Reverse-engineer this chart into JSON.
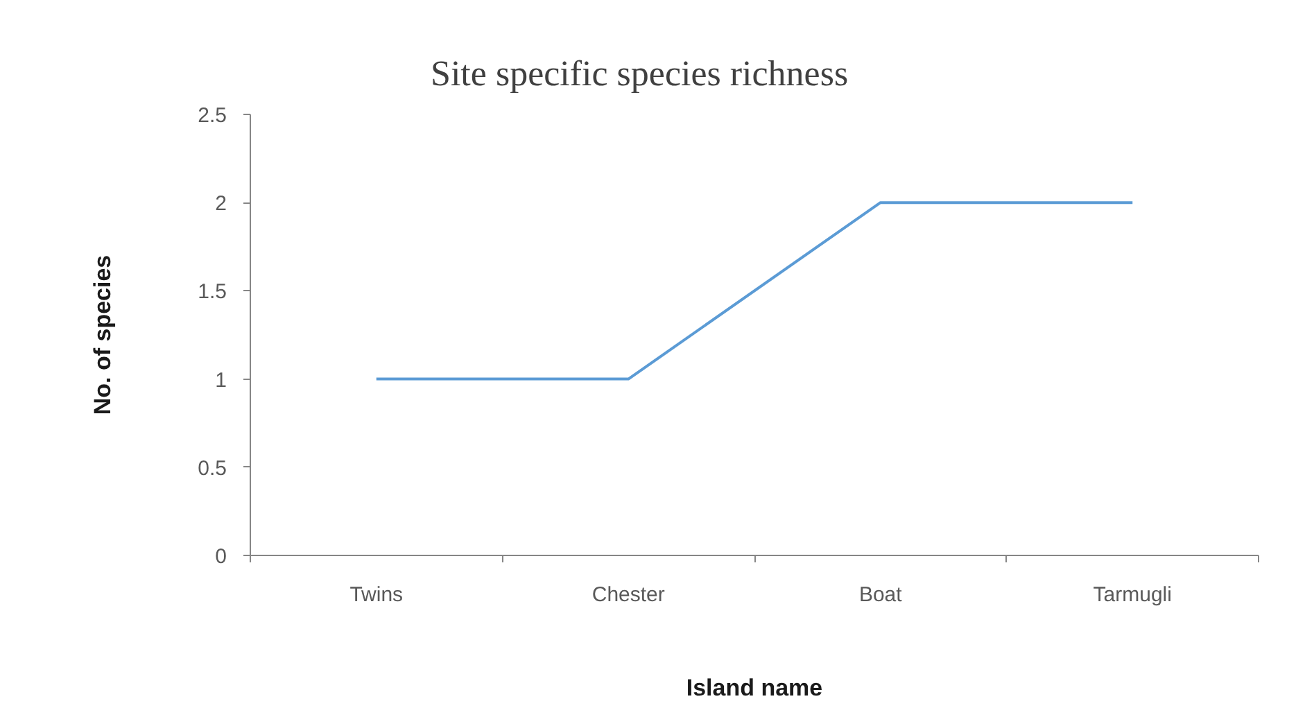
{
  "chart_data": {
    "type": "line",
    "title": "Site specific species richness",
    "xlabel": "Island name",
    "ylabel": "No. of species",
    "categories": [
      "Twins",
      "Chester",
      "Boat",
      "Tarmugli"
    ],
    "series": [
      {
        "color": "#5b9bd5",
        "values": [
          1,
          1,
          2,
          2
        ]
      }
    ],
    "ylim": [
      0,
      2.5
    ],
    "yticks": [
      0,
      0.5,
      1,
      1.5,
      2,
      2.5
    ],
    "marker": "none",
    "line_style": "solid"
  }
}
